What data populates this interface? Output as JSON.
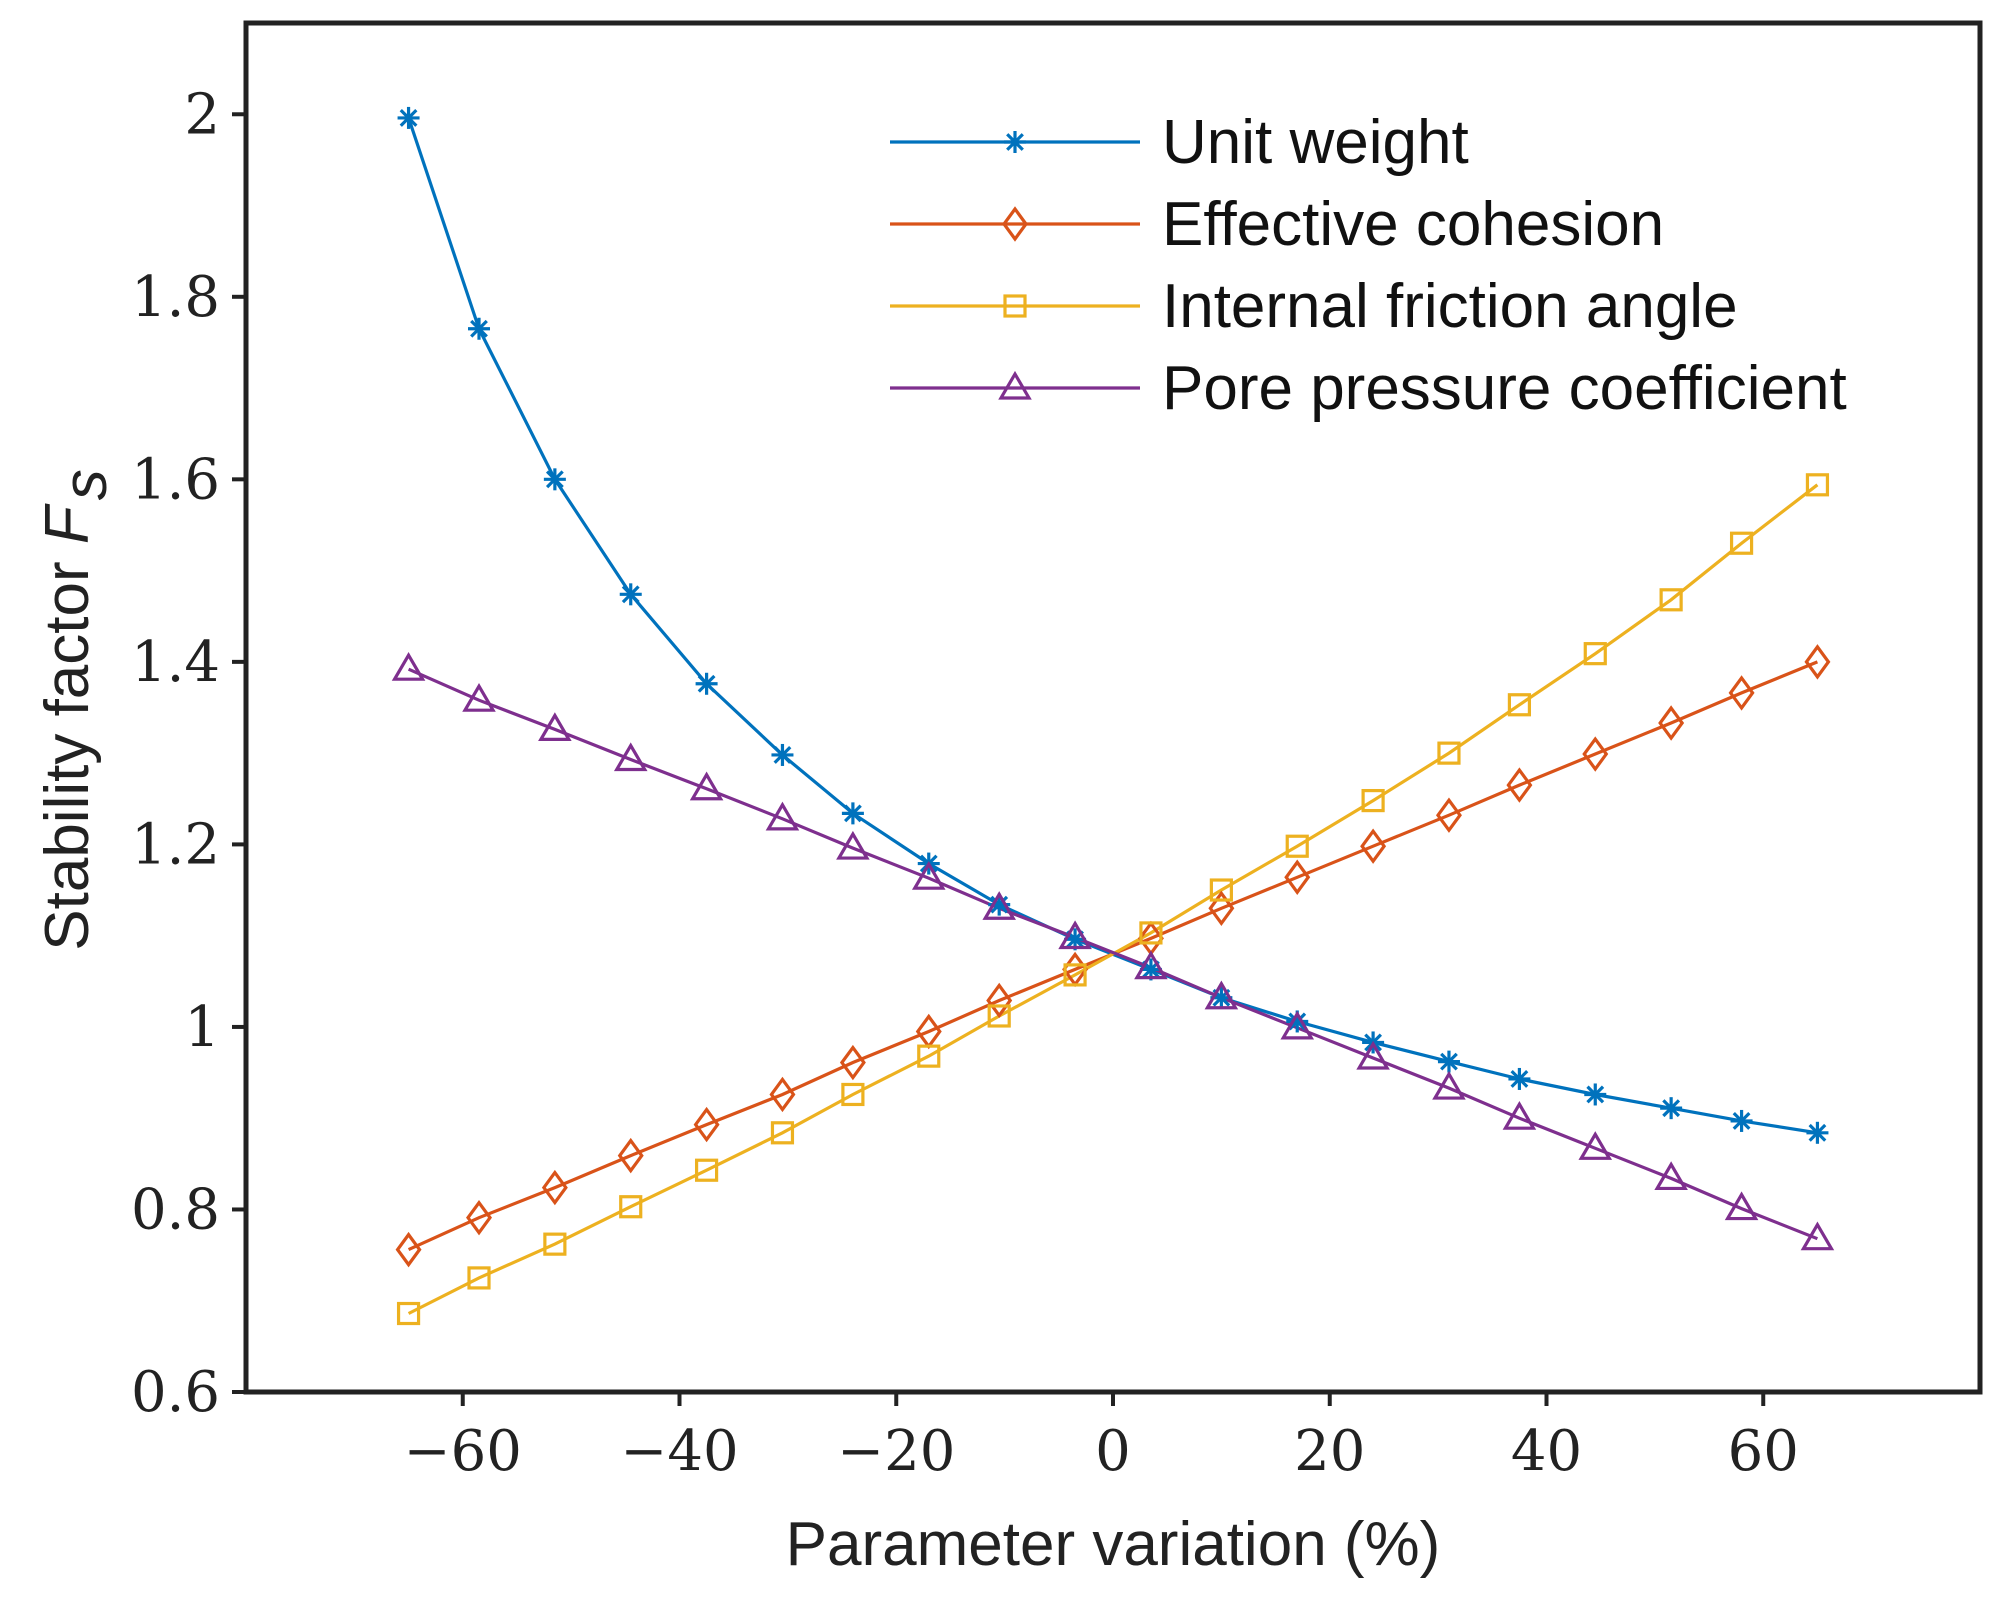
{
  "chart_data": {
    "type": "line",
    "title": "",
    "xlabel": "Parameter variation (%)",
    "ylabel_main": "Stability factor ",
    "ylabel_symbol": "F",
    "ylabel_subscript": "s",
    "xlim": [
      -80,
      80
    ],
    "ylim": [
      0.6,
      2.1
    ],
    "xticks": [
      -60,
      -40,
      -20,
      0,
      20,
      40,
      60
    ],
    "xtick_labels": [
      "−60",
      "−40",
      "−20",
      "0",
      "20",
      "40",
      "60"
    ],
    "yticks": [
      0.6,
      0.8,
      1.0,
      1.2,
      1.4,
      1.6,
      1.8,
      2.0
    ],
    "ytick_labels": [
      "0.6",
      "0.8",
      "1",
      "1.2",
      "1.4",
      "1.6",
      "1.8",
      "2"
    ],
    "grid": false,
    "legend_position": "top-right",
    "x": [
      -65,
      -58.5,
      -51.5,
      -44.5,
      -37.5,
      -30.5,
      -24,
      -17,
      -10.5,
      -3.5,
      3.5,
      10,
      17,
      24,
      31,
      37.5,
      44.5,
      51.5,
      58,
      65
    ],
    "series": [
      {
        "name": "Unit weight",
        "color": "#0072BD",
        "marker": "asterisk",
        "values": [
          1.996,
          1.765,
          1.6,
          1.474,
          1.376,
          1.298,
          1.234,
          1.179,
          1.134,
          1.096,
          1.063,
          1.032,
          1.006,
          0.983,
          0.962,
          0.943,
          0.926,
          0.911,
          0.897,
          0.884
        ]
      },
      {
        "name": "Effective cohesion",
        "color": "#D95319",
        "marker": "diamond",
        "values": [
          0.756,
          0.791,
          0.824,
          0.859,
          0.893,
          0.926,
          0.961,
          0.995,
          1.029,
          1.063,
          1.097,
          1.13,
          1.164,
          1.198,
          1.232,
          1.265,
          1.299,
          1.333,
          1.366,
          1.4
        ]
      },
      {
        "name": "Internal friction angle",
        "color": "#EDB120",
        "marker": "square",
        "values": [
          0.686,
          0.725,
          0.762,
          0.803,
          0.843,
          0.884,
          0.926,
          0.968,
          1.012,
          1.057,
          1.103,
          1.15,
          1.198,
          1.248,
          1.3,
          1.353,
          1.409,
          1.468,
          1.53,
          1.594
        ]
      },
      {
        "name": "Pore pressure coefficient",
        "color": "#7E2F8E",
        "marker": "triangle",
        "values": [
          1.392,
          1.358,
          1.326,
          1.293,
          1.261,
          1.228,
          1.196,
          1.163,
          1.13,
          1.098,
          1.065,
          1.032,
          0.999,
          0.966,
          0.933,
          0.9,
          0.867,
          0.834,
          0.801,
          0.768
        ]
      }
    ]
  }
}
